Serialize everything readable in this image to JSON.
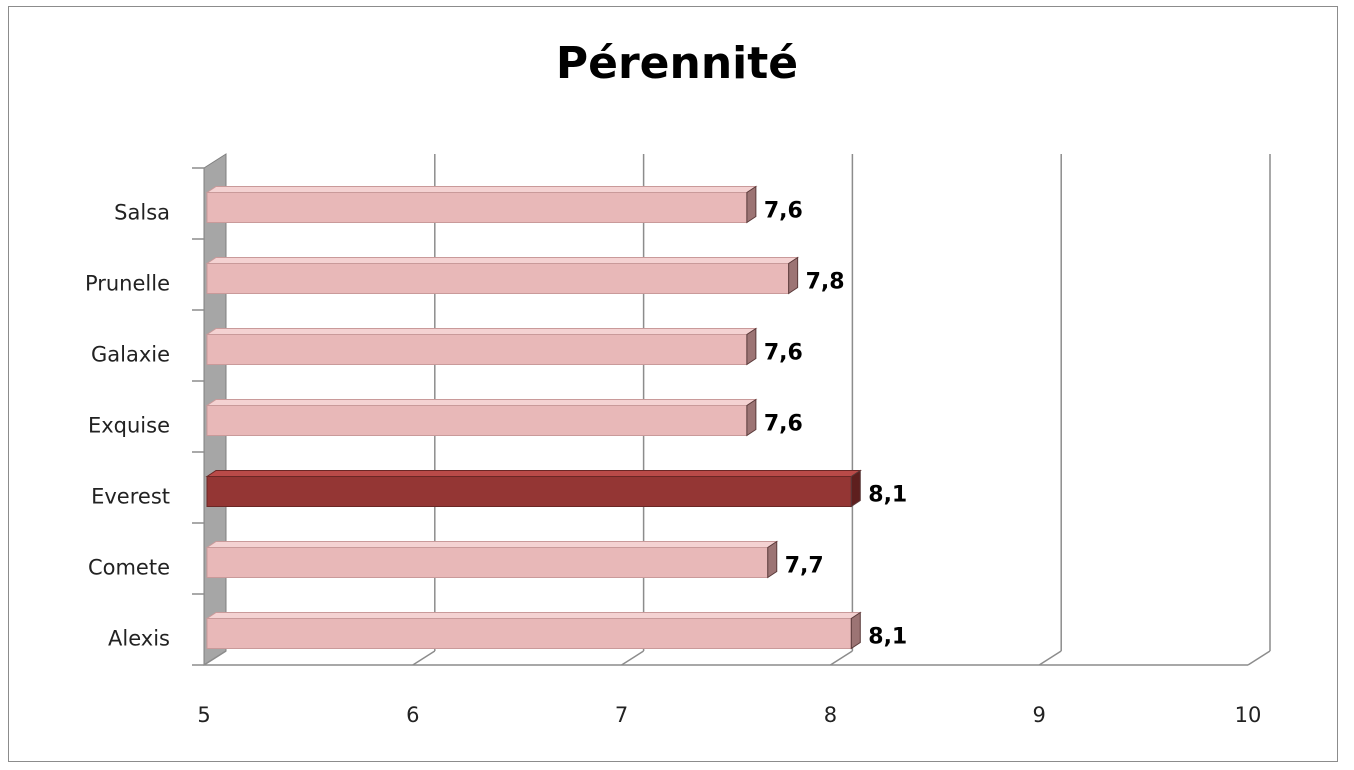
{
  "chart_data": {
    "type": "bar",
    "orientation": "horizontal",
    "title": "Pérennité",
    "categories": [
      "Salsa",
      "Prunelle",
      "Galaxie",
      "Exquise",
      "Everest",
      "Comete",
      "Alexis"
    ],
    "values": [
      7.6,
      7.8,
      7.6,
      7.6,
      8.1,
      7.7,
      8.1
    ],
    "value_labels": [
      "7,6",
      "7,8",
      "7,6",
      "7,6",
      "8,1",
      "7,7",
      "8,1"
    ],
    "highlight": "Everest",
    "xlim": [
      5,
      10
    ],
    "xticks": [
      "5",
      "6",
      "7",
      "8",
      "9",
      "10"
    ],
    "xlabel": "",
    "ylabel": "",
    "grid": true,
    "legend": "none",
    "colors": {
      "bar": "#e8b8b8",
      "bar_highlight": "#943634",
      "grid": "#8c8c8c",
      "wall": "#a6a6a6"
    }
  }
}
